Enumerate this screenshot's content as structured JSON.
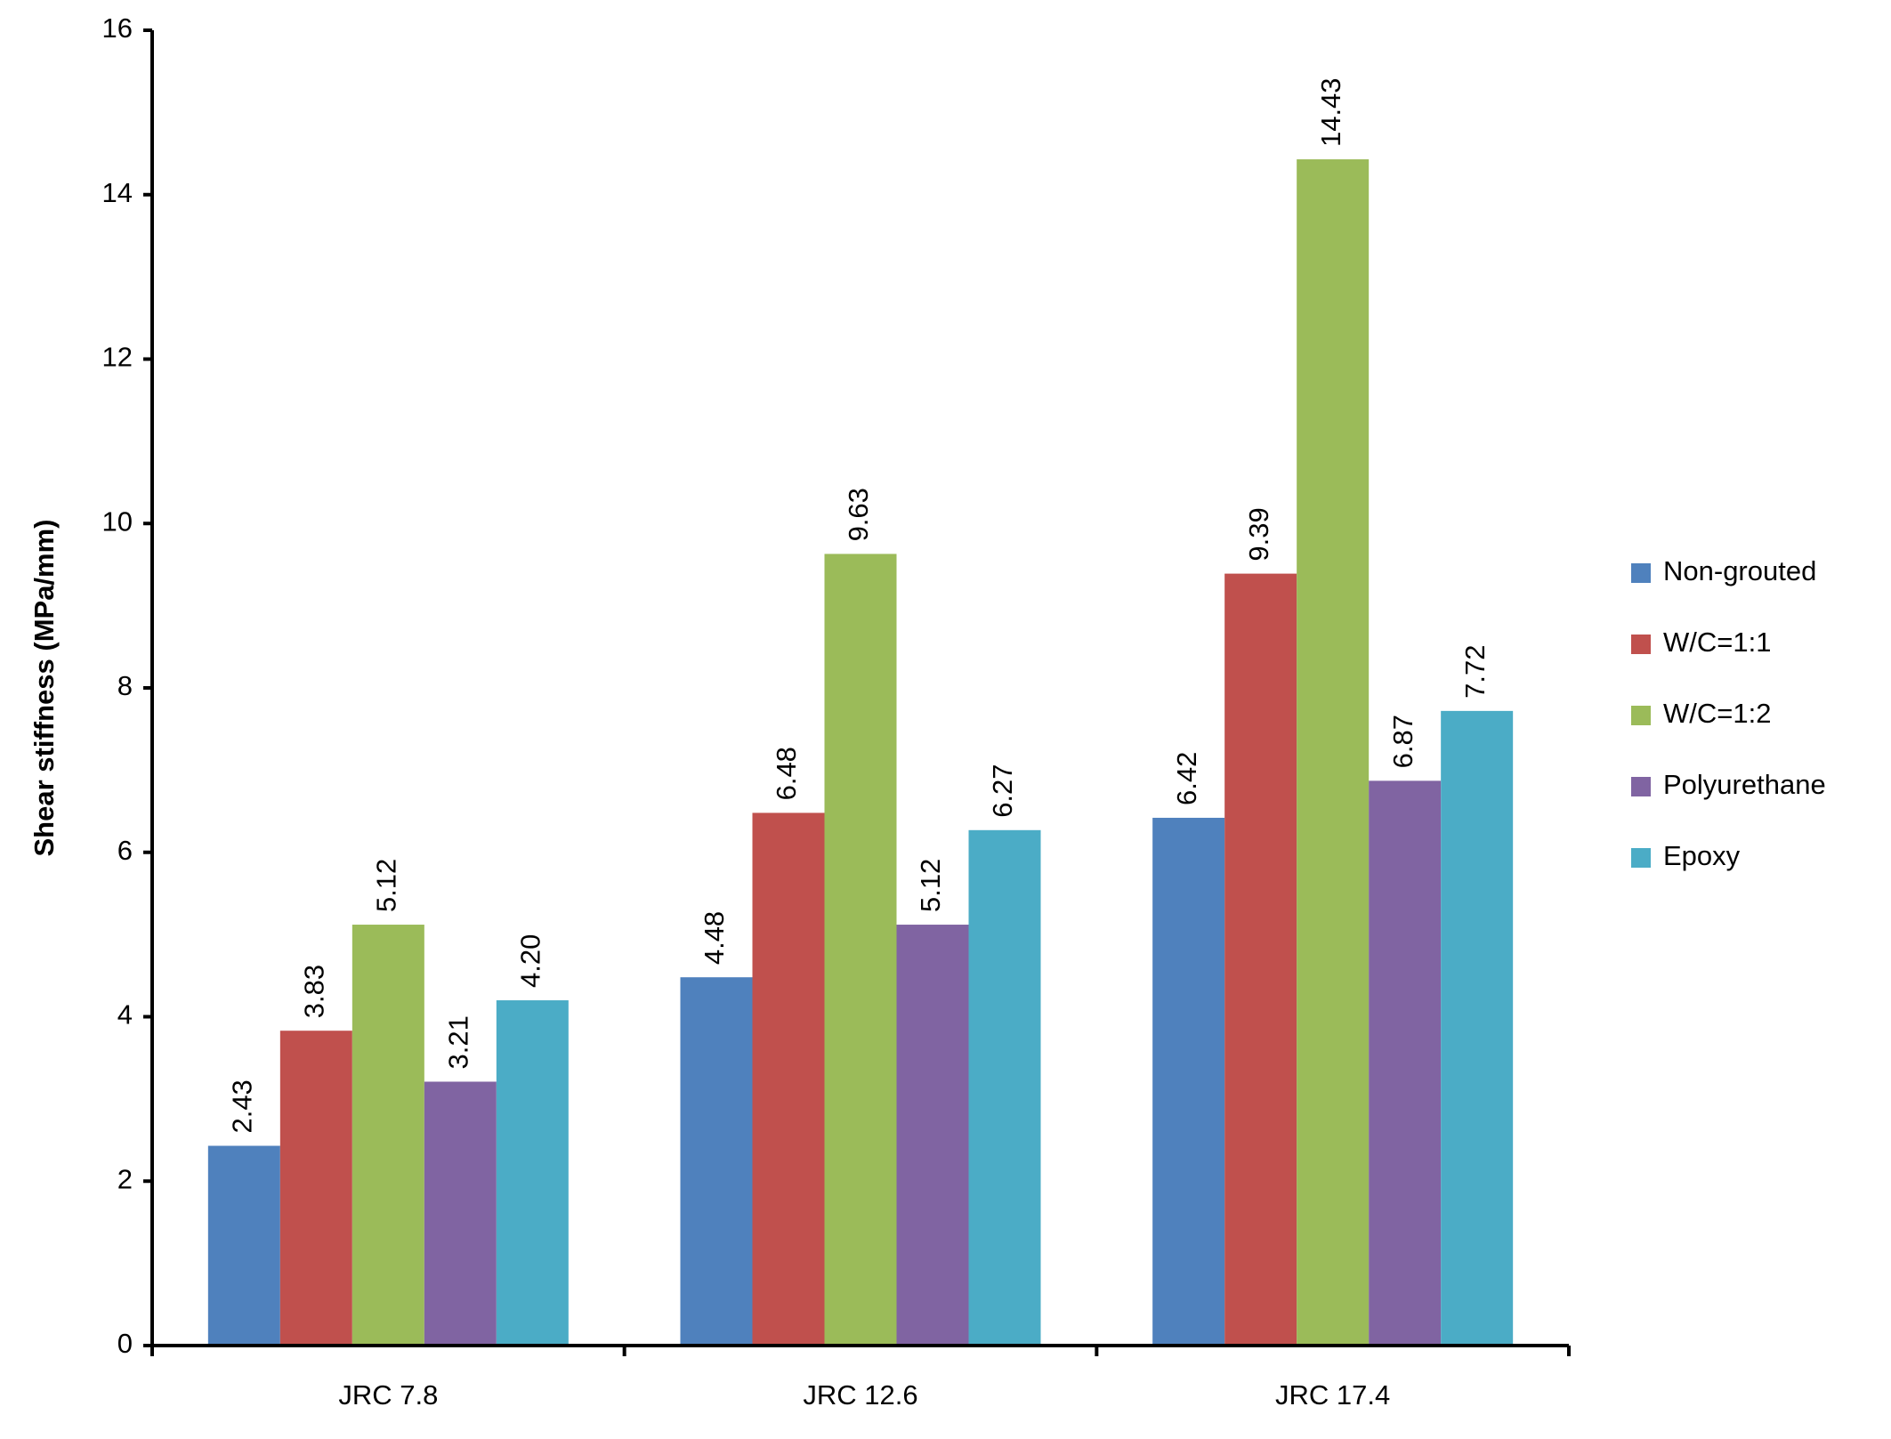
{
  "chart_data": {
    "type": "bar",
    "y_label": "Shear stiffness (MPa/mm)",
    "categories": [
      "JRC 7.8",
      "JRC 12.6",
      "JRC 17.4"
    ],
    "series": [
      {
        "name": "Non-grouted",
        "color": "#4f81bd",
        "values": [
          2.43,
          4.48,
          6.42
        ],
        "value_labels": [
          "2.43",
          "4.48",
          "6.42"
        ]
      },
      {
        "name": "W/C=1:1",
        "color": "#c0504d",
        "values": [
          3.83,
          6.48,
          9.39
        ],
        "value_labels": [
          "3.83",
          "6.48",
          "9.39"
        ]
      },
      {
        "name": "W/C=1:2",
        "color": "#9bbb59",
        "values": [
          5.12,
          9.63,
          14.43
        ],
        "value_labels": [
          "5.12",
          "9.63",
          "14.43"
        ]
      },
      {
        "name": "Polyurethane",
        "color": "#8064a2",
        "values": [
          3.21,
          5.12,
          6.87
        ],
        "value_labels": [
          "3.21",
          "5.12",
          "6.87"
        ]
      },
      {
        "name": "Epoxy",
        "color": "#4bacc6",
        "values": [
          4.2,
          6.27,
          7.72
        ],
        "value_labels": [
          "4.20",
          "6.27",
          "7.72"
        ]
      }
    ],
    "ylim": [
      0,
      16
    ],
    "yticks": [
      0,
      2,
      4,
      6,
      8,
      10,
      12,
      14,
      16
    ],
    "grid": false,
    "legend": "right"
  }
}
